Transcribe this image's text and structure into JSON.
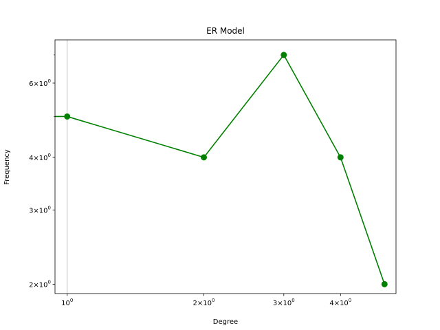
{
  "chart_data": {
    "type": "line",
    "title": "ER Model",
    "xlabel": "Degree",
    "ylabel": "Frequency",
    "xscale": "log",
    "yscale": "log",
    "xlim": [
      0.94,
      5.3
    ],
    "ylim": [
      1.9,
      7.6
    ],
    "color": "#008000",
    "marker": "circle",
    "x": [
      0,
      1,
      2,
      3,
      4,
      5
    ],
    "y": [
      5,
      5,
      4,
      7,
      4,
      2
    ],
    "xticks": [
      {
        "value": 1,
        "base": "10",
        "exp": "0"
      },
      {
        "value": 2,
        "base": "2×10",
        "exp": "0"
      },
      {
        "value": 3,
        "base": "3×10",
        "exp": "0"
      },
      {
        "value": 4,
        "base": "4×10",
        "exp": "0"
      }
    ],
    "yticks": [
      {
        "value": 2,
        "base": "2×10",
        "exp": "0"
      },
      {
        "value": 3,
        "base": "3×10",
        "exp": "0"
      },
      {
        "value": 4,
        "base": "4×10",
        "exp": "0"
      },
      {
        "value": 6,
        "base": "6×10",
        "exp": "0"
      }
    ],
    "y_minor_ticks": [
      5,
      7
    ],
    "vline_x": 1,
    "grid": false
  }
}
